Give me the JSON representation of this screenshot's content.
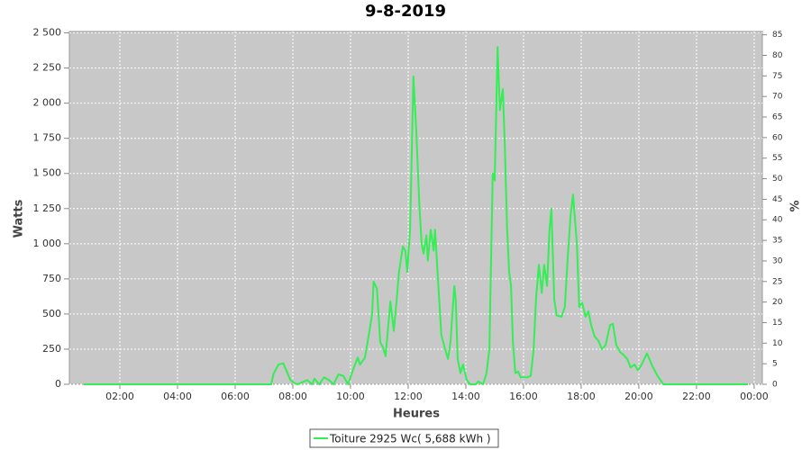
{
  "chart_data": {
    "type": "line",
    "title": "9-8-2019",
    "x_label": "Heures",
    "y_label": "Watts",
    "y2_label": "%",
    "xlim": [
      15,
      1457
    ],
    "ylim": [
      0,
      2510
    ],
    "y2lim": [
      0,
      85.8
    ],
    "xticks": [
      {
        "value": 120,
        "label": "02:00"
      },
      {
        "value": 240,
        "label": "04:00"
      },
      {
        "value": 360,
        "label": "06:00"
      },
      {
        "value": 480,
        "label": "08:00"
      },
      {
        "value": 600,
        "label": "10:00"
      },
      {
        "value": 720,
        "label": "12:00"
      },
      {
        "value": 840,
        "label": "14:00"
      },
      {
        "value": 960,
        "label": "16:00"
      },
      {
        "value": 1080,
        "label": "18:00"
      },
      {
        "value": 1200,
        "label": "20:00"
      },
      {
        "value": 1320,
        "label": "22:00"
      },
      {
        "value": 1440,
        "label": "00:00"
      }
    ],
    "yticks": [
      0,
      250,
      500,
      750,
      {
        "value": 1000,
        "label": "1 000"
      },
      {
        "value": 1250,
        "label": "1 250"
      },
      {
        "value": 1500,
        "label": "1 500"
      },
      {
        "value": 1750,
        "label": "1 750"
      },
      {
        "value": 2000,
        "label": "2 000"
      },
      {
        "value": 2250,
        "label": "2 250"
      },
      {
        "value": 2500,
        "label": "2 500"
      }
    ],
    "y2ticks": [
      0,
      5,
      10,
      15,
      20,
      25,
      30,
      35,
      40,
      45,
      50,
      55,
      60,
      65,
      70,
      75,
      80,
      85
    ],
    "grid": true,
    "plot_background": "#c8c8c8",
    "legend": "bottom",
    "series": [
      {
        "name": "Toiture 2925 Wc( 5,688 kWh )",
        "color": "#33ee55",
        "x": [
          45,
          435,
          440,
          450,
          460,
          465,
          475,
          485,
          490,
          510,
          520,
          525,
          535,
          545,
          555,
          565,
          575,
          585,
          595,
          605,
          615,
          620,
          630,
          640,
          645,
          648,
          655,
          662,
          668,
          673,
          683,
          690,
          696,
          701,
          709,
          714,
          718,
          724,
          731,
          737,
          743,
          748,
          752,
          758,
          761,
          767,
          773,
          776,
          782,
          789,
          797,
          803,
          808,
          816,
          819,
          823,
          829,
          834,
          842,
          849,
          861,
          866,
          876,
          883,
          889,
          896,
          900,
          906,
          911,
          917,
          921,
          926,
          930,
          934,
          938,
          943,
          949,
          954,
          968,
          975,
          981,
          986,
          992,
          998,
          1003,
          1009,
          1014,
          1018,
          1024,
          1029,
          1039,
          1046,
          1052,
          1058,
          1063,
          1071,
          1076,
          1082,
          1089,
          1095,
          1101,
          1108,
          1116,
          1123,
          1131,
          1140,
          1146,
          1153,
          1161,
          1168,
          1176,
          1183,
          1191,
          1198,
          1206,
          1217,
          1228,
          1239,
          1251,
          1427
        ],
        "values": [
          0,
          0,
          75,
          140,
          150,
          110,
          30,
          5,
          0,
          30,
          0,
          40,
          0,
          50,
          30,
          0,
          70,
          60,
          0,
          100,
          190,
          140,
          190,
          390,
          500,
          730,
          680,
          300,
          260,
          200,
          590,
          380,
          600,
          800,
          980,
          950,
          800,
          1100,
          2190,
          1800,
          1300,
          1000,
          930,
          1060,
          880,
          1100,
          950,
          1100,
          750,
          350,
          250,
          180,
          300,
          700,
          600,
          180,
          80,
          140,
          30,
          0,
          0,
          20,
          0,
          80,
          250,
          1500,
          1450,
          2400,
          1950,
          2100,
          1700,
          1100,
          800,
          700,
          300,
          80,
          90,
          50,
          50,
          60,
          250,
          600,
          850,
          650,
          850,
          700,
          1100,
          1250,
          600,
          490,
          480,
          550,
          900,
          1200,
          1350,
          1000,
          550,
          580,
          480,
          520,
          420,
          340,
          310,
          250,
          280,
          420,
          430,
          280,
          230,
          210,
          180,
          120,
          140,
          100,
          140,
          220,
          130,
          60,
          0,
          0
        ]
      }
    ]
  }
}
